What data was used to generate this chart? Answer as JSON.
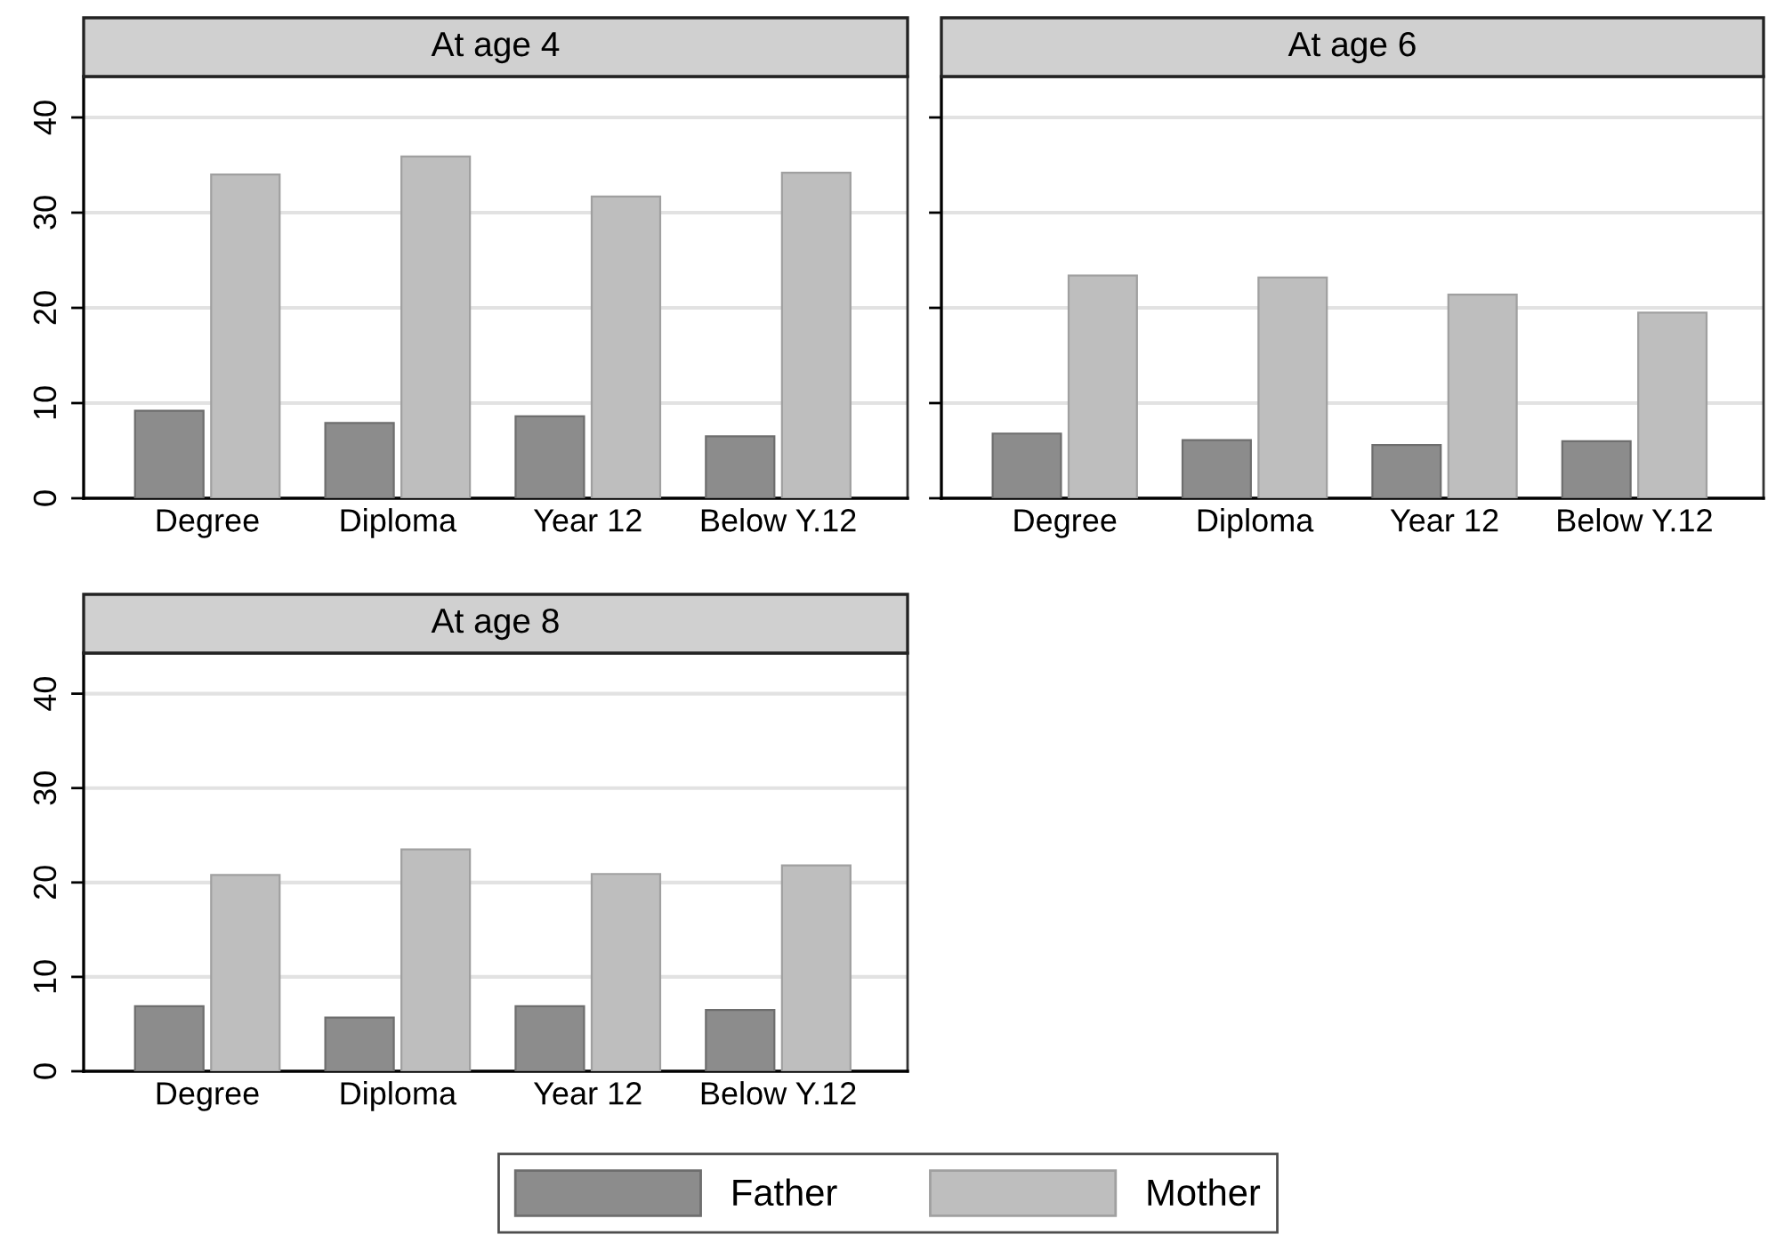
{
  "chart_data": [
    {
      "type": "bar",
      "title": "At age 4",
      "categories": [
        "Degree",
        "Diploma",
        "Year 12",
        "Below Y.12"
      ],
      "ylim": [
        0,
        44.3
      ],
      "yticks": [
        0,
        10,
        20,
        30,
        40
      ],
      "grid": "y",
      "series": [
        {
          "color": "#8c8c8c",
          "values": [
            9.2,
            7.9,
            8.6,
            6.5
          ]
        },
        {
          "color": "#bebebe",
          "values": [
            34.0,
            35.9,
            31.7,
            34.2
          ]
        }
      ]
    },
    {
      "type": "bar",
      "title": "At age 6",
      "categories": [
        "Degree",
        "Diploma",
        "Year 12",
        "Below Y.12"
      ],
      "ylim": [
        0,
        44.3
      ],
      "yticks": [
        0,
        10,
        20,
        30,
        40
      ],
      "grid": "y",
      "tick_labels": "x",
      "series": [
        {
          "color": "#8c8c8c",
          "values": [
            6.8,
            6.1,
            5.6,
            6.0
          ]
        },
        {
          "color": "#bebebe",
          "values": [
            23.4,
            23.2,
            21.4,
            19.5
          ]
        }
      ]
    },
    {
      "type": "bar",
      "title": "At age 8",
      "categories": [
        "Degree",
        "Diploma",
        "Year 12",
        "Below Y.12"
      ],
      "ylim": [
        0,
        44.3
      ],
      "yticks": [
        0,
        10,
        20,
        30,
        40
      ],
      "grid": "y",
      "legend": "bottom",
      "series": [
        {
          "name": "Father",
          "color": "#8c8c8c",
          "values": [
            6.9,
            5.7,
            6.9,
            6.5
          ]
        },
        {
          "name": "Mother",
          "color": "#bebebe",
          "values": [
            20.8,
            23.5,
            20.9,
            21.8
          ]
        }
      ]
    }
  ]
}
